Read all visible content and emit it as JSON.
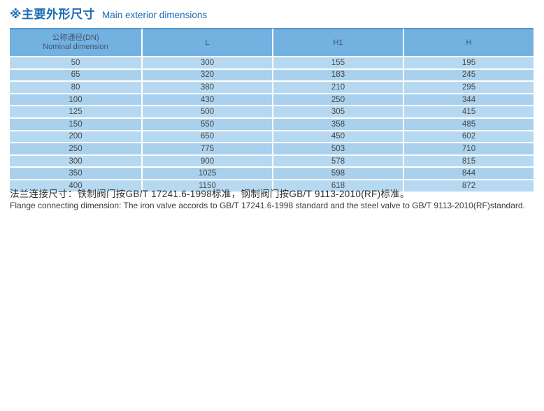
{
  "page": {
    "title_zh": "※主要外形尺寸",
    "title_en": "Main exterior dimensions"
  },
  "colors": {
    "title_blue": "#1c6bb4",
    "header_bg": "#73b1e1",
    "header_top_edge": "#559ace",
    "row_light": "#b6d9f1",
    "row_dark": "#a9d1ed",
    "body_text": "#474747"
  },
  "table": {
    "headers": [
      {
        "line1": "公称通径(DN)",
        "line2": "Nominal dimension"
      },
      {
        "line1": "L",
        "line2": ""
      },
      {
        "line1": "H1",
        "line2": ""
      },
      {
        "line1": "H",
        "line2": ""
      }
    ],
    "rows": [
      [
        "50",
        "300",
        "155",
        "195"
      ],
      [
        "65",
        "320",
        "183",
        "245"
      ],
      [
        "80",
        "380",
        "210",
        "295"
      ],
      [
        "100",
        "430",
        "250",
        "344"
      ],
      [
        "125",
        "500",
        "305",
        "415"
      ],
      [
        "150",
        "550",
        "358",
        "485"
      ],
      [
        "200",
        "650",
        "450",
        "602"
      ],
      [
        "250",
        "775",
        "503",
        "710"
      ],
      [
        "300",
        "900",
        "578",
        "815"
      ],
      [
        "350",
        "1025",
        "598",
        "844"
      ],
      [
        "400",
        "1150",
        "618",
        "872"
      ]
    ]
  },
  "footnote": {
    "zh": "法兰连接尺寸：铁制阀门按GB/T 17241.6-1998标准，钢制阀门按GB/T 9113-2010(RF)标准。",
    "en": "Flange connecting dimension: The iron valve accords to GB/T 17241.6-1998  standard and the steel valve to GB/T 9113-2010(RF)standard."
  }
}
